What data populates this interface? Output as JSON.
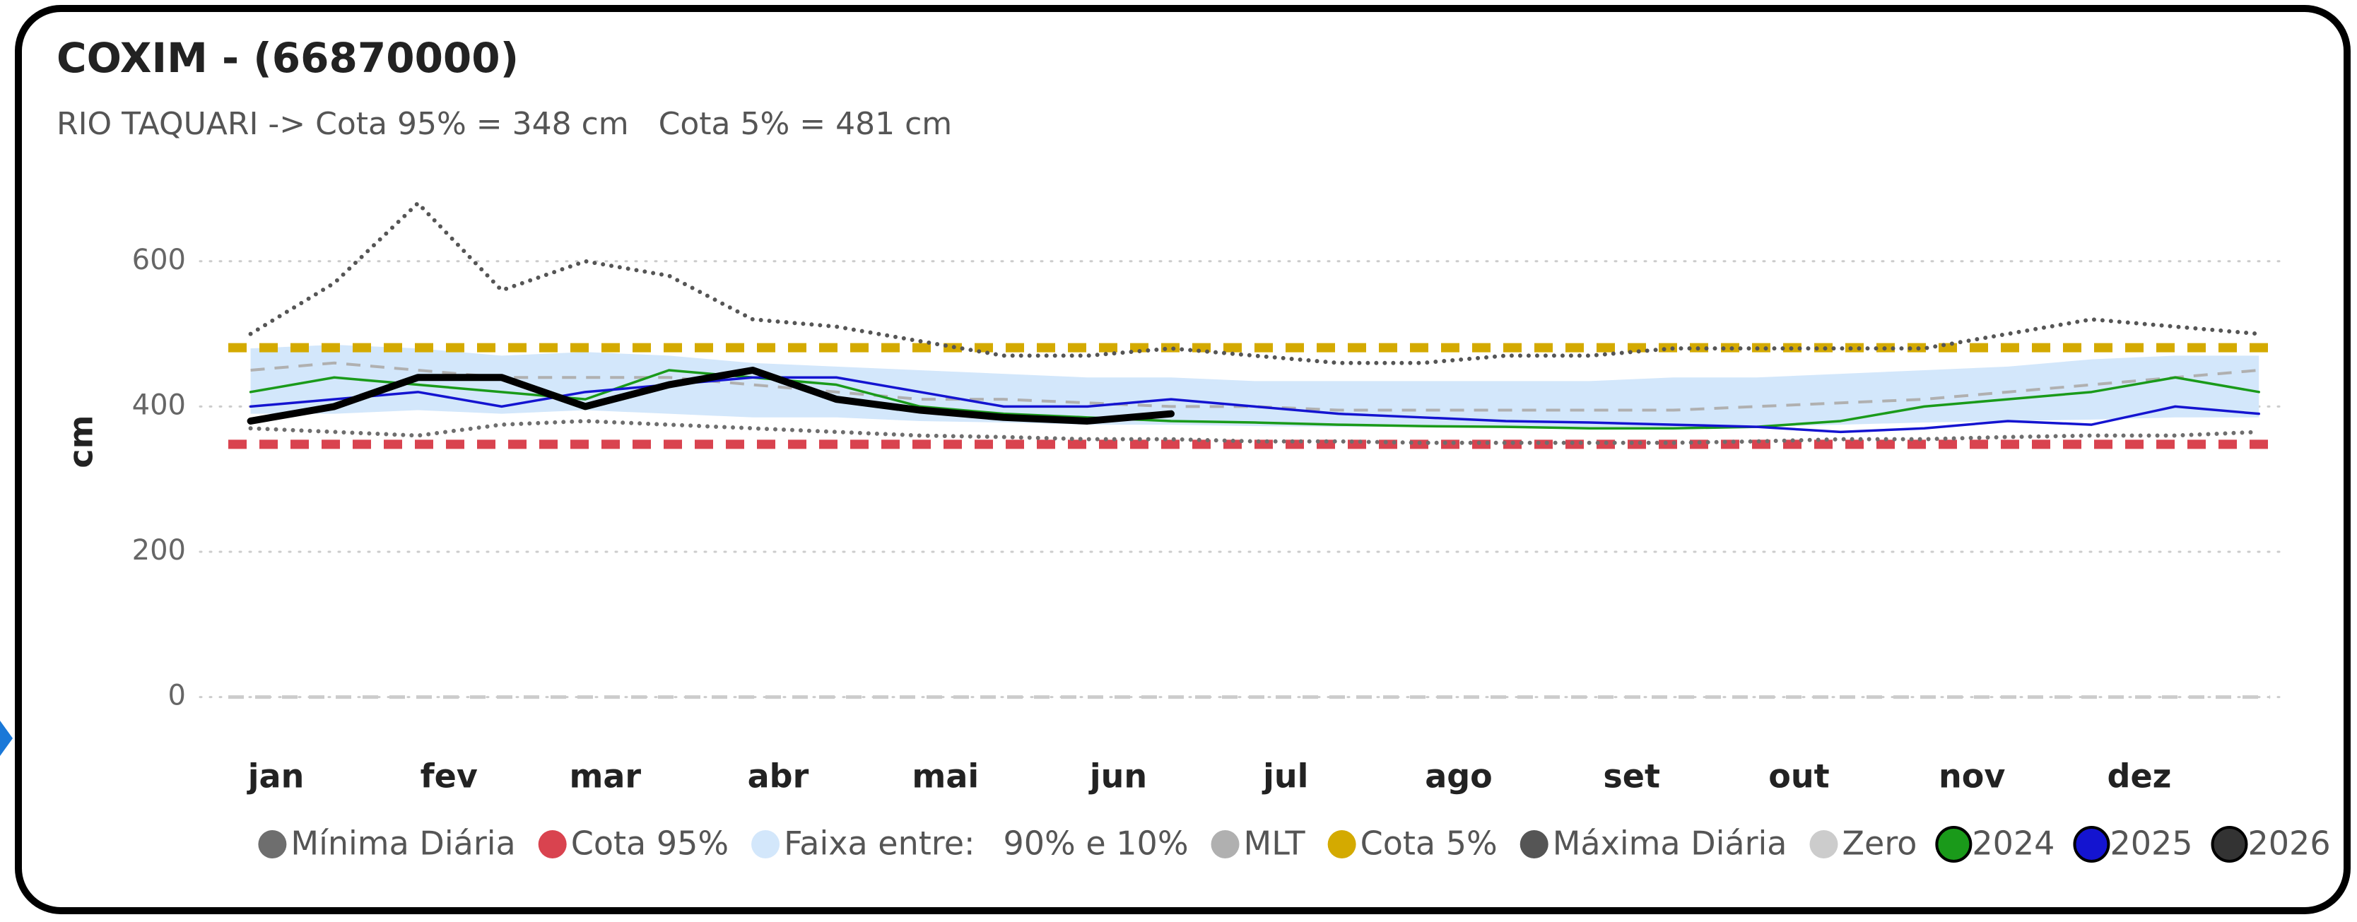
{
  "chart_data": {
    "type": "line",
    "title": "COXIM - (66870000)",
    "subtitle": "RIO TAQUARI -> Cota 95% = 348 cm   Cota 5% = 481 cm",
    "ylabel": "cm",
    "x": [
      0,
      15,
      30,
      45,
      60,
      75,
      90,
      105,
      120,
      135,
      150,
      165,
      180,
      195,
      210,
      225,
      240,
      255,
      270,
      285,
      300,
      315,
      330,
      345,
      360
    ],
    "xlim": [
      -4,
      362
    ],
    "xticks": [
      {
        "value": 0,
        "label": "jan"
      },
      {
        "value": 31,
        "label": "fev"
      },
      {
        "value": 59,
        "label": "mar"
      },
      {
        "value": 90,
        "label": "abr"
      },
      {
        "value": 120,
        "label": "mai"
      },
      {
        "value": 151,
        "label": "jun"
      },
      {
        "value": 181,
        "label": "jul"
      },
      {
        "value": 212,
        "label": "ago"
      },
      {
        "value": 243,
        "label": "set"
      },
      {
        "value": 273,
        "label": "out"
      },
      {
        "value": 304,
        "label": "nov"
      },
      {
        "value": 334,
        "label": "dez"
      }
    ],
    "ylim": [
      -15,
      700
    ],
    "yticks": [
      0,
      200,
      400,
      600
    ],
    "grid": true,
    "series": [
      {
        "name": "Mínima Diária",
        "style": "dotted",
        "color": "#6e6e6e",
        "values": [
          370,
          365,
          360,
          375,
          380,
          375,
          370,
          365,
          360,
          358,
          355,
          355,
          352,
          352,
          350,
          350,
          350,
          350,
          352,
          355,
          355,
          358,
          360,
          360,
          365
        ]
      },
      {
        "name": "Cota 95%",
        "style": "hline",
        "color": "#d9434f",
        "value": 348
      },
      {
        "name": "Faixa entre:",
        "range_label": "90% e 10%",
        "style": "band",
        "color": "#d3e7fb",
        "upper": [
          480,
          485,
          480,
          470,
          475,
          470,
          460,
          455,
          450,
          445,
          440,
          440,
          435,
          435,
          435,
          435,
          435,
          440,
          440,
          445,
          450,
          455,
          465,
          470,
          470
        ],
        "lower": [
          390,
          390,
          395,
          390,
          395,
          390,
          385,
          385,
          380,
          378,
          375,
          375,
          373,
          372,
          372,
          372,
          372,
          372,
          372,
          375,
          378,
          380,
          382,
          385,
          385
        ]
      },
      {
        "name": "MLT",
        "style": "dashed",
        "color": "#b0b0b0",
        "values": [
          450,
          460,
          450,
          440,
          440,
          440,
          430,
          420,
          410,
          410,
          405,
          400,
          400,
          395,
          395,
          395,
          395,
          395,
          400,
          405,
          410,
          420,
          430,
          440,
          450
        ]
      },
      {
        "name": "Cota 5%",
        "style": "hline",
        "color": "#d4aa00",
        "value": 481
      },
      {
        "name": "Máxima Diária",
        "style": "dotted",
        "color": "#555555",
        "values": [
          500,
          570,
          680,
          560,
          600,
          580,
          520,
          510,
          490,
          470,
          470,
          480,
          470,
          460,
          460,
          470,
          470,
          480,
          480,
          480,
          480,
          500,
          520,
          510,
          500
        ]
      },
      {
        "name": "Zero",
        "style": "hline",
        "color": "#cccccc",
        "value": 0
      },
      {
        "name": "2024",
        "style": "solid",
        "color": "#1a9a1a",
        "values": [
          420,
          440,
          430,
          420,
          410,
          450,
          440,
          430,
          400,
          390,
          385,
          380,
          378,
          375,
          373,
          372,
          370,
          370,
          372,
          380,
          400,
          410,
          420,
          440,
          420
        ]
      },
      {
        "name": "2025",
        "style": "solid",
        "color": "#1414d0",
        "values": [
          400,
          410,
          420,
          400,
          420,
          430,
          440,
          440,
          420,
          400,
          400,
          410,
          400,
          390,
          385,
          380,
          378,
          375,
          372,
          365,
          370,
          380,
          375,
          400,
          390
        ]
      },
      {
        "name": "2026",
        "style": "bold",
        "color": "#000000",
        "values": [
          380,
          400,
          440,
          440,
          400,
          430,
          450,
          410,
          395,
          385,
          380,
          390,
          null,
          null,
          null,
          null,
          null,
          null,
          null,
          null,
          null,
          null,
          null,
          null,
          null
        ]
      }
    ]
  }
}
